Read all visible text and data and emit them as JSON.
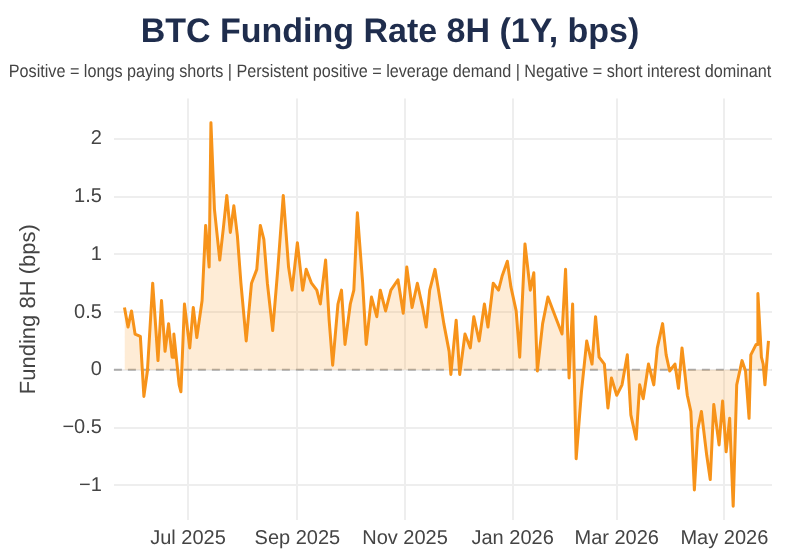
{
  "chart_data": {
    "type": "area",
    "title": "BTC Funding Rate 8H (1Y, bps)",
    "subtitle": "Positive = longs paying shorts | Persistent positive = leverage demand | Negative = short interest dominant",
    "ylabel": "Funding 8H (bps)",
    "x": [
      "2025-05-26",
      "2025-05-28",
      "2025-05-30",
      "2025-06-01",
      "2025-06-04",
      "2025-06-06",
      "2025-06-08",
      "2025-06-11",
      "2025-06-14",
      "2025-06-16",
      "2025-06-18",
      "2025-06-20",
      "2025-06-22",
      "2025-06-23",
      "2025-06-26",
      "2025-06-27",
      "2025-06-29",
      "2025-07-02",
      "2025-07-04",
      "2025-07-06",
      "2025-07-09",
      "2025-07-11",
      "2025-07-13",
      "2025-07-14",
      "2025-07-16",
      "2025-07-19",
      "2025-07-21",
      "2025-07-23",
      "2025-07-25",
      "2025-07-27",
      "2025-07-29",
      "2025-07-31",
      "2025-08-03",
      "2025-08-06",
      "2025-08-09",
      "2025-08-11",
      "2025-08-13",
      "2025-08-15",
      "2025-08-18",
      "2025-08-21",
      "2025-08-24",
      "2025-08-27",
      "2025-08-29",
      "2025-09-01",
      "2025-09-04",
      "2025-09-06",
      "2025-09-09",
      "2025-09-12",
      "2025-09-14",
      "2025-09-17",
      "2025-09-19",
      "2025-09-21",
      "2025-09-24",
      "2025-09-26",
      "2025-09-28",
      "2025-10-01",
      "2025-10-03",
      "2025-10-05",
      "2025-10-08",
      "2025-10-10",
      "2025-10-13",
      "2025-10-16",
      "2025-10-18",
      "2025-10-21",
      "2025-10-24",
      "2025-10-28",
      "2025-10-31",
      "2025-11-02",
      "2025-11-05",
      "2025-11-08",
      "2025-11-11",
      "2025-11-13",
      "2025-11-15",
      "2025-11-18",
      "2025-11-20",
      "2025-11-23",
      "2025-11-26",
      "2025-11-27",
      "2025-11-30",
      "2025-12-02",
      "2025-12-05",
      "2025-12-08",
      "2025-12-10",
      "2025-12-13",
      "2025-12-16",
      "2025-12-18",
      "2025-12-21",
      "2025-12-24",
      "2025-12-26",
      "2025-12-29",
      "2025-12-31",
      "2026-01-03",
      "2026-01-05",
      "2026-01-08",
      "2026-01-11",
      "2026-01-13",
      "2026-01-15",
      "2026-01-18",
      "2026-01-21",
      "2026-01-24",
      "2026-01-26",
      "2026-01-29",
      "2026-01-31",
      "2026-02-02",
      "2026-02-04",
      "2026-02-06",
      "2026-02-09",
      "2026-02-12",
      "2026-02-15",
      "2026-02-17",
      "2026-02-19",
      "2026-02-22",
      "2026-02-24",
      "2026-02-26",
      "2026-03-01",
      "2026-03-04",
      "2026-03-07",
      "2026-03-09",
      "2026-03-12",
      "2026-03-14",
      "2026-03-16",
      "2026-03-19",
      "2026-03-22",
      "2026-03-24",
      "2026-03-27",
      "2026-03-29",
      "2026-03-31",
      "2026-04-03",
      "2026-04-05",
      "2026-04-07",
      "2026-04-10",
      "2026-04-12",
      "2026-04-14",
      "2026-04-16",
      "2026-04-18",
      "2026-04-21",
      "2026-04-23",
      "2026-04-25",
      "2026-04-28",
      "2026-04-30",
      "2026-05-02",
      "2026-05-04",
      "2026-05-06",
      "2026-05-08",
      "2026-05-11",
      "2026-05-13",
      "2026-05-15",
      "2026-05-16",
      "2026-05-19",
      "2026-05-20",
      "2026-05-22",
      "2026-05-23",
      "2026-05-24",
      "2026-05-26"
    ],
    "series": [
      {
        "color": "#f7931a",
        "values": [
          0.54,
          0.37,
          0.51,
          0.31,
          0.29,
          -0.23,
          -0.01,
          0.75,
          0.08,
          0.6,
          0.16,
          0.4,
          0.11,
          0.31,
          -0.13,
          -0.19,
          0.57,
          0.19,
          0.54,
          0.28,
          0.6,
          1.25,
          0.89,
          2.14,
          1.39,
          0.95,
          1.22,
          1.51,
          1.19,
          1.42,
          1.16,
          0.75,
          0.25,
          0.75,
          0.87,
          1.25,
          1.13,
          0.75,
          0.34,
          0.89,
          1.51,
          0.89,
          0.69,
          1.1,
          0.69,
          0.87,
          0.75,
          0.69,
          0.57,
          0.95,
          0.43,
          0.04,
          0.57,
          0.69,
          0.22,
          0.57,
          0.69,
          1.36,
          0.75,
          0.22,
          0.63,
          0.46,
          0.69,
          0.51,
          0.69,
          0.78,
          0.49,
          0.89,
          0.54,
          0.75,
          0.54,
          0.37,
          0.69,
          0.87,
          0.69,
          0.4,
          0.16,
          -0.04,
          0.43,
          -0.04,
          0.31,
          0.19,
          0.46,
          0.25,
          0.57,
          0.37,
          0.75,
          0.69,
          0.81,
          0.94,
          0.72,
          0.51,
          0.11,
          1.09,
          0.69,
          0.84,
          -0.01,
          0.4,
          0.63,
          0.51,
          0.43,
          0.31,
          0.87,
          -0.07,
          0.57,
          -0.77,
          -0.19,
          0.25,
          0.05,
          0.46,
          0.11,
          0.05,
          -0.33,
          -0.07,
          -0.22,
          -0.13,
          0.13,
          -0.39,
          -0.6,
          -0.13,
          -0.25,
          0.05,
          -0.13,
          0.19,
          0.4,
          0.13,
          -0.01,
          0.05,
          -0.16,
          0.19,
          -0.22,
          -0.36,
          -1.04,
          -0.51,
          -0.36,
          -0.74,
          -0.95,
          -0.3,
          -0.65,
          -0.27,
          -0.71,
          -0.42,
          -1.18,
          -0.13,
          0.08,
          -0.01,
          -0.42,
          0.13,
          0.22,
          0.66,
          0.11,
          0.05,
          -0.13,
          0.25
        ]
      }
    ],
    "xlim": [
      "2025-05-20",
      "2026-05-28"
    ],
    "xticks": [
      {
        "value": "2025-07-01",
        "label": "Jul 2025"
      },
      {
        "value": "2025-09-01",
        "label": "Sep 2025"
      },
      {
        "value": "2025-11-01",
        "label": "Nov 2025"
      },
      {
        "value": "2026-01-01",
        "label": "Jan 2026"
      },
      {
        "value": "2026-03-01",
        "label": "Mar 2026"
      },
      {
        "value": "2026-05-01",
        "label": "May 2026"
      }
    ],
    "ylim": [
      -1.3,
      2.35
    ],
    "yticks": [
      {
        "value": -1,
        "label": "−1"
      },
      {
        "value": -0.5,
        "label": "−0.5"
      },
      0,
      0.5,
      1,
      1.5,
      2
    ],
    "ref_lines": [
      {
        "axis": "y",
        "value": 0,
        "color": "#aaaaaa",
        "line_style": "dashed"
      }
    ],
    "grid": true
  }
}
